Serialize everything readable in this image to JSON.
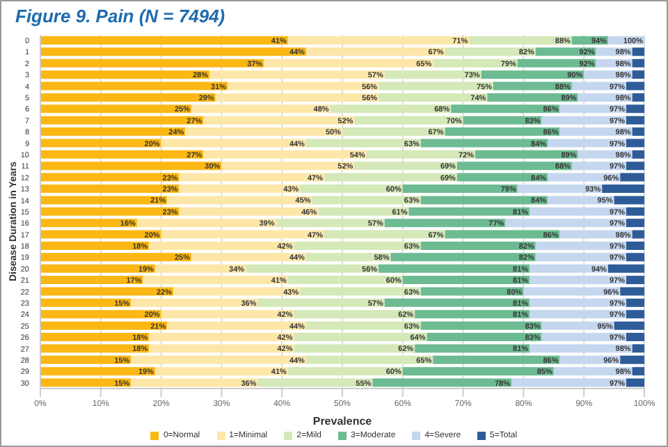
{
  "chart_data": {
    "type": "bar",
    "title": "Figure 9. Pain (N = 7494)",
    "xlabel": "Prevalence",
    "ylabel": "Disease Duration in Years",
    "orientation": "horizontal",
    "stacked": true,
    "grid": "x",
    "legend": "bottom",
    "categories": [
      "0",
      "1",
      "2",
      "3",
      "4",
      "5",
      "6",
      "7",
      "8",
      "9",
      "10",
      "11",
      "12",
      "13",
      "14",
      "15",
      "16",
      "17",
      "18",
      "19",
      "20",
      "21",
      "22",
      "23",
      "24",
      "25",
      "26",
      "27",
      "28",
      "29",
      "30"
    ],
    "xlim": [
      0,
      100
    ],
    "xticks": [
      {
        "value": 0,
        "label": "0%"
      },
      {
        "value": 10,
        "label": "10%"
      },
      {
        "value": 20,
        "label": "20%"
      },
      {
        "value": 30,
        "label": "30%"
      },
      {
        "value": 40,
        "label": "40%"
      },
      {
        "value": 50,
        "label": "50%"
      },
      {
        "value": 60,
        "label": "60%"
      },
      {
        "value": 70,
        "label": "70%"
      },
      {
        "value": 80,
        "label": "80%"
      },
      {
        "value": 90,
        "label": "90%"
      },
      {
        "value": 100,
        "label": "100%"
      }
    ],
    "series": [
      {
        "name": "0=Normal",
        "color": "#fbb714",
        "values": [
          41,
          44,
          37,
          28,
          31,
          29,
          25,
          27,
          24,
          20,
          27,
          30,
          23,
          23,
          21,
          23,
          16,
          20,
          18,
          25,
          19,
          17,
          22,
          15,
          20,
          21,
          18,
          18,
          15,
          19,
          15
        ]
      },
      {
        "name": "1=Minimal",
        "color": "#fde7a8",
        "values": [
          30,
          23,
          28,
          29,
          25,
          27,
          23,
          25,
          26,
          24,
          27,
          22,
          24,
          20,
          24,
          23,
          23,
          27,
          24,
          19,
          15,
          24,
          21,
          21,
          22,
          23,
          24,
          24,
          29,
          22,
          21
        ]
      },
      {
        "name": "2=Mild",
        "color": "#d5e8b8",
        "values": [
          17,
          15,
          14,
          16,
          19,
          18,
          20,
          18,
          17,
          19,
          18,
          17,
          22,
          17,
          18,
          15,
          18,
          20,
          21,
          14,
          22,
          19,
          20,
          21,
          20,
          19,
          22,
          20,
          21,
          19,
          19
        ]
      },
      {
        "name": "3=Moderate",
        "color": "#6dbb92",
        "values": [
          6,
          10,
          13,
          17,
          13,
          15,
          18,
          13,
          19,
          21,
          17,
          19,
          15,
          19,
          21,
          20,
          20,
          19,
          19,
          24,
          25,
          21,
          17,
          24,
          19,
          20,
          19,
          19,
          21,
          25,
          23
        ]
      },
      {
        "name": "4=Severe",
        "color": "#c5d7ef",
        "values": [
          6,
          6,
          6,
          8,
          9,
          9,
          11,
          14,
          12,
          13,
          9,
          9,
          12,
          14,
          11,
          16,
          20,
          12,
          15,
          15,
          13,
          16,
          16,
          16,
          16,
          12,
          14,
          17,
          10,
          13,
          19
        ]
      },
      {
        "name": "5=Total",
        "color": "#2d5c99",
        "values": [
          0,
          2,
          2,
          2,
          3,
          2,
          3,
          3,
          2,
          3,
          2,
          3,
          4,
          7,
          5,
          3,
          3,
          2,
          3,
          3,
          6,
          3,
          4,
          3,
          3,
          5,
          3,
          2,
          4,
          2,
          3
        ]
      }
    ],
    "annotations": [
      {
        "text": "41%",
        "x": 41,
        "y": "0"
      },
      {
        "text": "71%",
        "x": 71,
        "y": "0"
      },
      {
        "text": "88%",
        "x": 88,
        "y": "0"
      },
      {
        "text": "94%",
        "x": 94,
        "y": "0"
      },
      {
        "text": "100%",
        "x": 100,
        "y": "0"
      },
      {
        "text": "44%",
        "x": 44,
        "y": "1"
      },
      {
        "text": "67%",
        "x": 67,
        "y": "1"
      },
      {
        "text": "82%",
        "x": 82,
        "y": "1"
      },
      {
        "text": "92%",
        "x": 92,
        "y": "1"
      },
      {
        "text": "98%",
        "x": 98,
        "y": "1"
      },
      {
        "text": "37%",
        "x": 37,
        "y": "2"
      },
      {
        "text": "65%",
        "x": 65,
        "y": "2"
      },
      {
        "text": "79%",
        "x": 79,
        "y": "2"
      },
      {
        "text": "92%",
        "x": 92,
        "y": "2"
      },
      {
        "text": "98%",
        "x": 98,
        "y": "2"
      },
      {
        "text": "28%",
        "x": 28,
        "y": "3"
      },
      {
        "text": "57%",
        "x": 57,
        "y": "3"
      },
      {
        "text": "73%",
        "x": 73,
        "y": "3"
      },
      {
        "text": "90%",
        "x": 90,
        "y": "3"
      },
      {
        "text": "98%",
        "x": 98,
        "y": "3"
      },
      {
        "text": "31%",
        "x": 31,
        "y": "4"
      },
      {
        "text": "56%",
        "x": 56,
        "y": "4"
      },
      {
        "text": "75%",
        "x": 75,
        "y": "4"
      },
      {
        "text": "88%",
        "x": 88,
        "y": "4"
      },
      {
        "text": "97%",
        "x": 97,
        "y": "4"
      },
      {
        "text": "29%",
        "x": 29,
        "y": "5"
      },
      {
        "text": "56%",
        "x": 56,
        "y": "5"
      },
      {
        "text": "74%",
        "x": 74,
        "y": "5"
      },
      {
        "text": "89%",
        "x": 89,
        "y": "5"
      },
      {
        "text": "98%",
        "x": 98,
        "y": "5"
      },
      {
        "text": "25%",
        "x": 25,
        "y": "6"
      },
      {
        "text": "48%",
        "x": 48,
        "y": "6"
      },
      {
        "text": "68%",
        "x": 68,
        "y": "6"
      },
      {
        "text": "86%",
        "x": 86,
        "y": "6"
      },
      {
        "text": "97%",
        "x": 97,
        "y": "6"
      },
      {
        "text": "27%",
        "x": 27,
        "y": "7"
      },
      {
        "text": "52%",
        "x": 52,
        "y": "7"
      },
      {
        "text": "70%",
        "x": 70,
        "y": "7"
      },
      {
        "text": "83%",
        "x": 83,
        "y": "7"
      },
      {
        "text": "97%",
        "x": 97,
        "y": "7"
      },
      {
        "text": "24%",
        "x": 24,
        "y": "8"
      },
      {
        "text": "50%",
        "x": 50,
        "y": "8"
      },
      {
        "text": "67%",
        "x": 67,
        "y": "8"
      },
      {
        "text": "86%",
        "x": 86,
        "y": "8"
      },
      {
        "text": "98%",
        "x": 98,
        "y": "8"
      },
      {
        "text": "20%",
        "x": 20,
        "y": "9"
      },
      {
        "text": "44%",
        "x": 44,
        "y": "9"
      },
      {
        "text": "63%",
        "x": 63,
        "y": "9"
      },
      {
        "text": "84%",
        "x": 84,
        "y": "9"
      },
      {
        "text": "97%",
        "x": 97,
        "y": "9"
      },
      {
        "text": "27%",
        "x": 27,
        "y": "10"
      },
      {
        "text": "54%",
        "x": 54,
        "y": "10"
      },
      {
        "text": "72%",
        "x": 72,
        "y": "10"
      },
      {
        "text": "89%",
        "x": 89,
        "y": "10"
      },
      {
        "text": "98%",
        "x": 98,
        "y": "10"
      },
      {
        "text": "30%",
        "x": 30,
        "y": "11"
      },
      {
        "text": "52%",
        "x": 52,
        "y": "11"
      },
      {
        "text": "69%",
        "x": 69,
        "y": "11"
      },
      {
        "text": "88%",
        "x": 88,
        "y": "11"
      },
      {
        "text": "97%",
        "x": 97,
        "y": "11"
      },
      {
        "text": "23%",
        "x": 23,
        "y": "12"
      },
      {
        "text": "47%",
        "x": 47,
        "y": "12"
      },
      {
        "text": "69%",
        "x": 69,
        "y": "12"
      },
      {
        "text": "84%",
        "x": 84,
        "y": "12"
      },
      {
        "text": "96%",
        "x": 96,
        "y": "12"
      },
      {
        "text": "23%",
        "x": 23,
        "y": "13"
      },
      {
        "text": "43%",
        "x": 43,
        "y": "13"
      },
      {
        "text": "60%",
        "x": 60,
        "y": "13"
      },
      {
        "text": "79%",
        "x": 79,
        "y": "13"
      },
      {
        "text": "93%",
        "x": 93,
        "y": "13"
      },
      {
        "text": "21%",
        "x": 21,
        "y": "14"
      },
      {
        "text": "45%",
        "x": 45,
        "y": "14"
      },
      {
        "text": "63%",
        "x": 63,
        "y": "14"
      },
      {
        "text": "84%",
        "x": 84,
        "y": "14"
      },
      {
        "text": "95%",
        "x": 95,
        "y": "14"
      },
      {
        "text": "23%",
        "x": 23,
        "y": "15"
      },
      {
        "text": "46%",
        "x": 46,
        "y": "15"
      },
      {
        "text": "61%",
        "x": 61,
        "y": "15"
      },
      {
        "text": "81%",
        "x": 81,
        "y": "15"
      },
      {
        "text": "97%",
        "x": 97,
        "y": "15"
      },
      {
        "text": "16%",
        "x": 16,
        "y": "16"
      },
      {
        "text": "39%",
        "x": 39,
        "y": "16"
      },
      {
        "text": "57%",
        "x": 57,
        "y": "16"
      },
      {
        "text": "77%",
        "x": 77,
        "y": "16"
      },
      {
        "text": "97%",
        "x": 97,
        "y": "16"
      },
      {
        "text": "20%",
        "x": 20,
        "y": "17"
      },
      {
        "text": "47%",
        "x": 47,
        "y": "17"
      },
      {
        "text": "67%",
        "x": 67,
        "y": "17"
      },
      {
        "text": "86%",
        "x": 86,
        "y": "17"
      },
      {
        "text": "98%",
        "x": 98,
        "y": "17"
      },
      {
        "text": "18%",
        "x": 18,
        "y": "18"
      },
      {
        "text": "42%",
        "x": 42,
        "y": "18"
      },
      {
        "text": "63%",
        "x": 63,
        "y": "18"
      },
      {
        "text": "82%",
        "x": 82,
        "y": "18"
      },
      {
        "text": "97%",
        "x": 97,
        "y": "18"
      },
      {
        "text": "25%",
        "x": 25,
        "y": "19"
      },
      {
        "text": "44%",
        "x": 44,
        "y": "19"
      },
      {
        "text": "58%",
        "x": 58,
        "y": "19"
      },
      {
        "text": "82%",
        "x": 82,
        "y": "19"
      },
      {
        "text": "97%",
        "x": 97,
        "y": "19"
      },
      {
        "text": "19%",
        "x": 19,
        "y": "20"
      },
      {
        "text": "34%",
        "x": 34,
        "y": "20"
      },
      {
        "text": "56%",
        "x": 56,
        "y": "20"
      },
      {
        "text": "81%",
        "x": 81,
        "y": "20"
      },
      {
        "text": "94%",
        "x": 94,
        "y": "20"
      },
      {
        "text": "17%",
        "x": 17,
        "y": "21"
      },
      {
        "text": "41%",
        "x": 41,
        "y": "21"
      },
      {
        "text": "60%",
        "x": 60,
        "y": "21"
      },
      {
        "text": "81%",
        "x": 81,
        "y": "21"
      },
      {
        "text": "97%",
        "x": 97,
        "y": "21"
      },
      {
        "text": "22%",
        "x": 22,
        "y": "22"
      },
      {
        "text": "43%",
        "x": 43,
        "y": "22"
      },
      {
        "text": "63%",
        "x": 63,
        "y": "22"
      },
      {
        "text": "80%",
        "x": 80,
        "y": "22"
      },
      {
        "text": "96%",
        "x": 96,
        "y": "22"
      },
      {
        "text": "15%",
        "x": 15,
        "y": "23"
      },
      {
        "text": "36%",
        "x": 36,
        "y": "23"
      },
      {
        "text": "57%",
        "x": 57,
        "y": "23"
      },
      {
        "text": "81%",
        "x": 81,
        "y": "23"
      },
      {
        "text": "97%",
        "x": 97,
        "y": "23"
      },
      {
        "text": "20%",
        "x": 20,
        "y": "24"
      },
      {
        "text": "42%",
        "x": 42,
        "y": "24"
      },
      {
        "text": "62%",
        "x": 62,
        "y": "24"
      },
      {
        "text": "81%",
        "x": 81,
        "y": "24"
      },
      {
        "text": "97%",
        "x": 97,
        "y": "24"
      },
      {
        "text": "21%",
        "x": 21,
        "y": "25"
      },
      {
        "text": "44%",
        "x": 44,
        "y": "25"
      },
      {
        "text": "63%",
        "x": 63,
        "y": "25"
      },
      {
        "text": "83%",
        "x": 83,
        "y": "25"
      },
      {
        "text": "95%",
        "x": 95,
        "y": "25"
      },
      {
        "text": "18%",
        "x": 18,
        "y": "26"
      },
      {
        "text": "42%",
        "x": 42,
        "y": "26"
      },
      {
        "text": "64%",
        "x": 64,
        "y": "26"
      },
      {
        "text": "83%",
        "x": 83,
        "y": "26"
      },
      {
        "text": "97%",
        "x": 97,
        "y": "26"
      },
      {
        "text": "18%",
        "x": 18,
        "y": "27"
      },
      {
        "text": "42%",
        "x": 42,
        "y": "27"
      },
      {
        "text": "62%",
        "x": 62,
        "y": "27"
      },
      {
        "text": "81%",
        "x": 81,
        "y": "27"
      },
      {
        "text": "98%",
        "x": 98,
        "y": "27"
      },
      {
        "text": "15%",
        "x": 15,
        "y": "28"
      },
      {
        "text": "44%",
        "x": 44,
        "y": "28"
      },
      {
        "text": "65%",
        "x": 65,
        "y": "28"
      },
      {
        "text": "86%",
        "x": 86,
        "y": "28"
      },
      {
        "text": "96%",
        "x": 96,
        "y": "28"
      },
      {
        "text": "19%",
        "x": 19,
        "y": "29"
      },
      {
        "text": "41%",
        "x": 41,
        "y": "29"
      },
      {
        "text": "60%",
        "x": 60,
        "y": "29"
      },
      {
        "text": "85%",
        "x": 85,
        "y": "29"
      },
      {
        "text": "98%",
        "x": 98,
        "y": "29"
      },
      {
        "text": "15%",
        "x": 15,
        "y": "30"
      },
      {
        "text": "36%",
        "x": 36,
        "y": "30"
      },
      {
        "text": "55%",
        "x": 55,
        "y": "30"
      },
      {
        "text": "78%",
        "x": 78,
        "y": "30"
      },
      {
        "text": "97%",
        "x": 97,
        "y": "30"
      }
    ]
  }
}
